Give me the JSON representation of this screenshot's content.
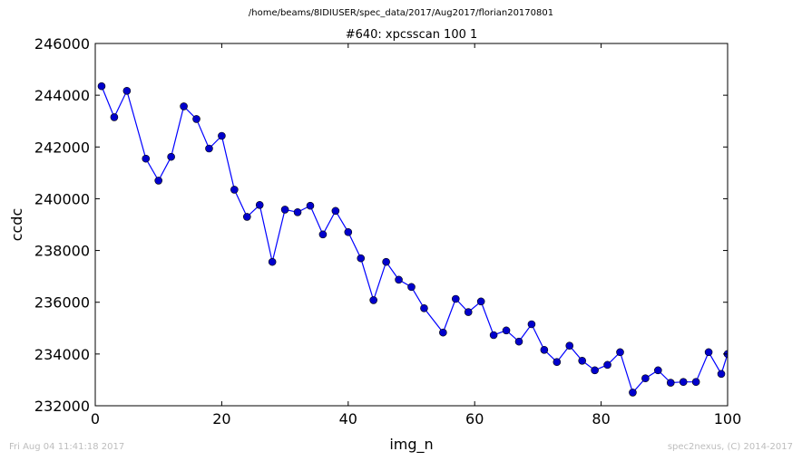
{
  "supertitle": "/home/beams/8IDIUSER/spec_data/2017/Aug2017/florian20170801",
  "footer": {
    "timestamp": "Fri Aug 04 11:41:18 2017",
    "credit": "spec2nexus, (C) 2014-2017"
  },
  "colors": {
    "line": "#0000ff",
    "marker_fill": "#0000cc",
    "axes": "#000000"
  },
  "chart_data": {
    "type": "line",
    "title": "#640: xpcsscan 100 1",
    "xlabel": "img_n",
    "ylabel": "ccdc",
    "xlim": [
      0,
      100
    ],
    "ylim": [
      232000,
      246000
    ],
    "xticks": [
      0,
      20,
      40,
      60,
      80,
      100
    ],
    "yticks": [
      232000,
      234000,
      236000,
      238000,
      240000,
      242000,
      244000,
      246000
    ],
    "grid": false,
    "markers": "circle",
    "series": [
      {
        "x": [
          1,
          3,
          5,
          8,
          10,
          12,
          14,
          16,
          18,
          20,
          22,
          24,
          26,
          28,
          30,
          32,
          34,
          36,
          38,
          40,
          42,
          44,
          46,
          48,
          50,
          52,
          55,
          57,
          59,
          61,
          63,
          65,
          67,
          69,
          71,
          73,
          75,
          77,
          79,
          81,
          83,
          85,
          87,
          89,
          91,
          93,
          95,
          97,
          99,
          100
        ],
        "y": [
          244350,
          243150,
          244170,
          241550,
          240700,
          241620,
          243570,
          243080,
          241940,
          242430,
          240350,
          239300,
          239760,
          237560,
          239580,
          239480,
          239730,
          238620,
          239530,
          238710,
          237700,
          236080,
          237560,
          236870,
          236590,
          235770,
          234830,
          236130,
          235620,
          236030,
          234730,
          234910,
          234480,
          235150,
          234160,
          233690,
          234320,
          233740,
          233370,
          233580,
          234070,
          232510,
          233060,
          233370,
          232890,
          232920,
          232920,
          234070,
          233230,
          234000
        ]
      }
    ]
  }
}
